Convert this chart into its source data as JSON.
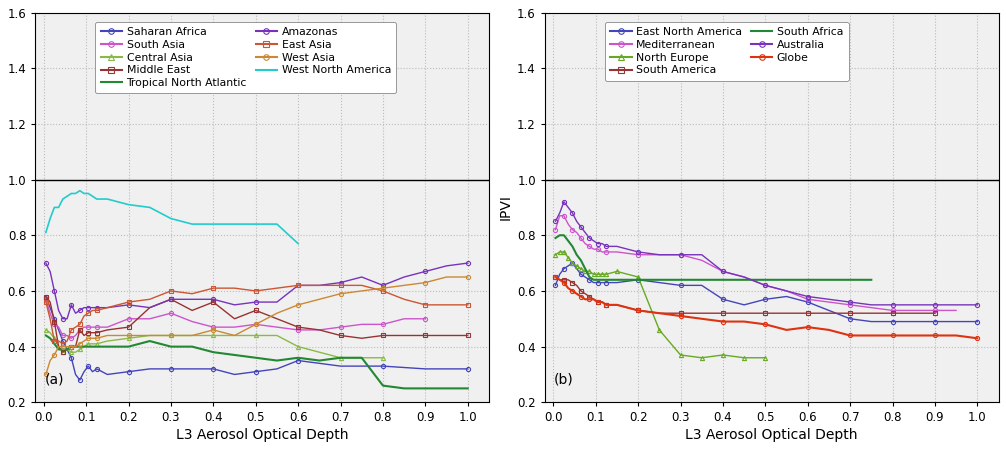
{
  "panel_a": {
    "xlabel": "L3 Aerosol Optical Depth",
    "ylabel": "",
    "label": "(a)",
    "ylim": [
      0.2,
      1.6
    ],
    "xlim": [
      -0.02,
      1.05
    ],
    "series": [
      {
        "name": "Saharan Africa",
        "color": "#4444bb",
        "marker": "o",
        "lw": 1.0,
        "x": [
          0.005,
          0.015,
          0.025,
          0.035,
          0.045,
          0.055,
          0.065,
          0.075,
          0.085,
          0.095,
          0.105,
          0.115,
          0.125,
          0.15,
          0.2,
          0.25,
          0.3,
          0.35,
          0.4,
          0.45,
          0.5,
          0.55,
          0.6,
          0.7,
          0.8,
          0.9,
          1.0
        ],
        "y": [
          0.58,
          0.54,
          0.5,
          0.46,
          0.42,
          0.39,
          0.36,
          0.3,
          0.28,
          0.31,
          0.33,
          0.31,
          0.32,
          0.3,
          0.31,
          0.32,
          0.32,
          0.32,
          0.32,
          0.3,
          0.31,
          0.32,
          0.35,
          0.33,
          0.33,
          0.32,
          0.32
        ]
      },
      {
        "name": "South Asia",
        "color": "#cc55cc",
        "marker": "o",
        "lw": 1.0,
        "x": [
          0.005,
          0.015,
          0.025,
          0.035,
          0.045,
          0.055,
          0.065,
          0.075,
          0.085,
          0.095,
          0.105,
          0.115,
          0.125,
          0.15,
          0.2,
          0.25,
          0.3,
          0.35,
          0.4,
          0.45,
          0.5,
          0.55,
          0.6,
          0.65,
          0.7,
          0.75,
          0.8,
          0.85,
          0.9
        ],
        "y": [
          0.57,
          0.52,
          0.48,
          0.47,
          0.44,
          0.44,
          0.43,
          0.44,
          0.46,
          0.47,
          0.47,
          0.47,
          0.47,
          0.47,
          0.5,
          0.5,
          0.52,
          0.49,
          0.47,
          0.47,
          0.48,
          0.47,
          0.46,
          0.46,
          0.47,
          0.48,
          0.48,
          0.5,
          0.5
        ]
      },
      {
        "name": "Central Asia",
        "color": "#88bb44",
        "marker": "^",
        "lw": 1.0,
        "x": [
          0.005,
          0.015,
          0.025,
          0.035,
          0.045,
          0.055,
          0.065,
          0.075,
          0.085,
          0.095,
          0.105,
          0.115,
          0.125,
          0.15,
          0.2,
          0.25,
          0.3,
          0.35,
          0.4,
          0.45,
          0.5,
          0.55,
          0.6,
          0.65,
          0.7,
          0.75,
          0.8
        ],
        "y": [
          0.46,
          0.45,
          0.43,
          0.4,
          0.38,
          0.39,
          0.38,
          0.38,
          0.39,
          0.4,
          0.41,
          0.41,
          0.41,
          0.42,
          0.43,
          0.44,
          0.44,
          0.44,
          0.44,
          0.44,
          0.44,
          0.44,
          0.4,
          0.38,
          0.36,
          0.36,
          0.36
        ]
      },
      {
        "name": "Middle East",
        "color": "#993333",
        "marker": "s",
        "lw": 1.0,
        "x": [
          0.005,
          0.015,
          0.025,
          0.035,
          0.045,
          0.055,
          0.065,
          0.075,
          0.085,
          0.095,
          0.105,
          0.115,
          0.125,
          0.15,
          0.2,
          0.25,
          0.3,
          0.35,
          0.4,
          0.45,
          0.5,
          0.55,
          0.6,
          0.65,
          0.7,
          0.75,
          0.8,
          0.85,
          0.9,
          0.95,
          1.0
        ],
        "y": [
          0.58,
          0.56,
          0.49,
          0.4,
          0.38,
          0.39,
          0.4,
          0.4,
          0.46,
          0.44,
          0.45,
          0.45,
          0.45,
          0.46,
          0.47,
          0.54,
          0.57,
          0.53,
          0.56,
          0.5,
          0.53,
          0.5,
          0.47,
          0.46,
          0.44,
          0.43,
          0.44,
          0.44,
          0.44,
          0.44,
          0.44
        ]
      },
      {
        "name": "Tropical North Atlantic",
        "color": "#228833",
        "marker": null,
        "lw": 1.5,
        "x": [
          0.005,
          0.015,
          0.025,
          0.035,
          0.045,
          0.055,
          0.065,
          0.075,
          0.085,
          0.095,
          0.105,
          0.115,
          0.125,
          0.15,
          0.2,
          0.25,
          0.3,
          0.35,
          0.4,
          0.45,
          0.5,
          0.55,
          0.6,
          0.65,
          0.7,
          0.75,
          0.8,
          0.85,
          0.9,
          0.95,
          1.0
        ],
        "y": [
          0.44,
          0.43,
          0.41,
          0.39,
          0.39,
          0.39,
          0.4,
          0.4,
          0.4,
          0.4,
          0.4,
          0.4,
          0.4,
          0.4,
          0.4,
          0.42,
          0.4,
          0.4,
          0.38,
          0.37,
          0.36,
          0.35,
          0.36,
          0.35,
          0.36,
          0.36,
          0.26,
          0.25,
          0.25,
          0.25,
          0.25
        ]
      },
      {
        "name": "Amazonas",
        "color": "#7733bb",
        "marker": "o",
        "lw": 1.0,
        "x": [
          0.005,
          0.015,
          0.025,
          0.035,
          0.045,
          0.055,
          0.065,
          0.075,
          0.085,
          0.095,
          0.105,
          0.115,
          0.125,
          0.15,
          0.2,
          0.25,
          0.3,
          0.35,
          0.4,
          0.45,
          0.5,
          0.55,
          0.6,
          0.65,
          0.7,
          0.75,
          0.8,
          0.85,
          0.9,
          0.95,
          1.0
        ],
        "y": [
          0.7,
          0.67,
          0.6,
          0.53,
          0.5,
          0.5,
          0.55,
          0.52,
          0.53,
          0.54,
          0.54,
          0.54,
          0.54,
          0.54,
          0.55,
          0.54,
          0.57,
          0.57,
          0.57,
          0.55,
          0.56,
          0.56,
          0.62,
          0.62,
          0.63,
          0.65,
          0.62,
          0.65,
          0.67,
          0.69,
          0.7
        ]
      },
      {
        "name": "East Asia",
        "color": "#cc5533",
        "marker": "s",
        "lw": 1.0,
        "x": [
          0.005,
          0.015,
          0.025,
          0.035,
          0.045,
          0.055,
          0.065,
          0.075,
          0.085,
          0.095,
          0.105,
          0.115,
          0.125,
          0.15,
          0.2,
          0.25,
          0.3,
          0.35,
          0.4,
          0.45,
          0.5,
          0.55,
          0.6,
          0.65,
          0.7,
          0.75,
          0.8,
          0.85,
          0.9,
          0.95,
          1.0
        ],
        "y": [
          0.56,
          0.5,
          0.42,
          0.42,
          0.41,
          0.42,
          0.46,
          0.47,
          0.48,
          0.51,
          0.52,
          0.53,
          0.53,
          0.54,
          0.56,
          0.57,
          0.6,
          0.59,
          0.61,
          0.61,
          0.6,
          0.61,
          0.62,
          0.62,
          0.62,
          0.62,
          0.6,
          0.57,
          0.55,
          0.55,
          0.55
        ]
      },
      {
        "name": "West Asia",
        "color": "#cc8833",
        "marker": "o",
        "lw": 1.0,
        "x": [
          0.005,
          0.015,
          0.025,
          0.035,
          0.045,
          0.055,
          0.065,
          0.075,
          0.085,
          0.095,
          0.105,
          0.115,
          0.125,
          0.15,
          0.2,
          0.25,
          0.3,
          0.35,
          0.4,
          0.45,
          0.5,
          0.55,
          0.6,
          0.65,
          0.7,
          0.75,
          0.8,
          0.85,
          0.9,
          0.95,
          1.0
        ],
        "y": [
          0.3,
          0.35,
          0.37,
          0.4,
          0.4,
          0.4,
          0.4,
          0.4,
          0.41,
          0.42,
          0.43,
          0.43,
          0.43,
          0.44,
          0.44,
          0.44,
          0.44,
          0.44,
          0.46,
          0.44,
          0.48,
          0.52,
          0.55,
          0.57,
          0.59,
          0.6,
          0.61,
          0.62,
          0.63,
          0.65,
          0.65
        ]
      },
      {
        "name": "West North America",
        "color": "#22cccc",
        "marker": null,
        "lw": 1.2,
        "x": [
          0.005,
          0.015,
          0.025,
          0.035,
          0.045,
          0.055,
          0.065,
          0.075,
          0.085,
          0.095,
          0.105,
          0.115,
          0.125,
          0.15,
          0.2,
          0.25,
          0.3,
          0.35,
          0.4,
          0.45,
          0.5,
          0.55,
          0.6
        ],
        "y": [
          0.81,
          0.86,
          0.9,
          0.9,
          0.93,
          0.94,
          0.95,
          0.95,
          0.96,
          0.95,
          0.95,
          0.94,
          0.93,
          0.93,
          0.91,
          0.9,
          0.86,
          0.84,
          0.84,
          0.84,
          0.84,
          0.84,
          0.77
        ]
      }
    ]
  },
  "panel_b": {
    "xlabel": "L3 Aerosol Optical Depth",
    "ylabel": "IPVI",
    "label": "(b)",
    "ylim": [
      0.2,
      1.6
    ],
    "xlim": [
      -0.02,
      1.05
    ],
    "series": [
      {
        "name": "East North America",
        "color": "#4444bb",
        "marker": "o",
        "lw": 1.0,
        "x": [
          0.005,
          0.015,
          0.025,
          0.035,
          0.045,
          0.055,
          0.065,
          0.075,
          0.085,
          0.095,
          0.105,
          0.115,
          0.125,
          0.15,
          0.2,
          0.25,
          0.3,
          0.35,
          0.4,
          0.45,
          0.5,
          0.55,
          0.6,
          0.65,
          0.7,
          0.75,
          0.8,
          0.85,
          0.9,
          0.95,
          1.0
        ],
        "y": [
          0.62,
          0.66,
          0.68,
          0.69,
          0.7,
          0.68,
          0.66,
          0.65,
          0.64,
          0.63,
          0.63,
          0.63,
          0.63,
          0.63,
          0.64,
          0.63,
          0.62,
          0.62,
          0.57,
          0.55,
          0.57,
          0.58,
          0.56,
          0.53,
          0.5,
          0.49,
          0.49,
          0.49,
          0.49,
          0.49,
          0.49
        ]
      },
      {
        "name": "Mediterranean",
        "color": "#cc55cc",
        "marker": "o",
        "lw": 1.0,
        "x": [
          0.005,
          0.015,
          0.025,
          0.035,
          0.045,
          0.055,
          0.065,
          0.075,
          0.085,
          0.095,
          0.105,
          0.115,
          0.125,
          0.15,
          0.2,
          0.25,
          0.3,
          0.35,
          0.4,
          0.45,
          0.5,
          0.55,
          0.6,
          0.65,
          0.7,
          0.75,
          0.8,
          0.85,
          0.9,
          0.95
        ],
        "y": [
          0.82,
          0.87,
          0.87,
          0.84,
          0.82,
          0.81,
          0.79,
          0.77,
          0.76,
          0.75,
          0.75,
          0.74,
          0.74,
          0.74,
          0.73,
          0.73,
          0.73,
          0.71,
          0.67,
          0.65,
          0.62,
          0.6,
          0.57,
          0.56,
          0.55,
          0.54,
          0.53,
          0.53,
          0.53,
          0.53
        ]
      },
      {
        "name": "North Europe",
        "color": "#66aa22",
        "marker": "^",
        "lw": 1.0,
        "x": [
          0.005,
          0.015,
          0.025,
          0.035,
          0.045,
          0.055,
          0.065,
          0.075,
          0.085,
          0.095,
          0.105,
          0.115,
          0.125,
          0.15,
          0.2,
          0.25,
          0.3,
          0.35,
          0.4,
          0.45,
          0.5
        ],
        "y": [
          0.73,
          0.74,
          0.74,
          0.72,
          0.7,
          0.69,
          0.68,
          0.67,
          0.67,
          0.66,
          0.66,
          0.66,
          0.66,
          0.67,
          0.65,
          0.46,
          0.37,
          0.36,
          0.37,
          0.36,
          0.36
        ]
      },
      {
        "name": "South America",
        "color": "#993333",
        "marker": "s",
        "lw": 1.0,
        "x": [
          0.005,
          0.015,
          0.025,
          0.035,
          0.045,
          0.055,
          0.065,
          0.075,
          0.085,
          0.095,
          0.105,
          0.115,
          0.125,
          0.15,
          0.2,
          0.25,
          0.3,
          0.35,
          0.4,
          0.45,
          0.5,
          0.55,
          0.6,
          0.65,
          0.7,
          0.75,
          0.8,
          0.85,
          0.9
        ],
        "y": [
          0.65,
          0.64,
          0.64,
          0.64,
          0.63,
          0.62,
          0.6,
          0.59,
          0.58,
          0.57,
          0.56,
          0.56,
          0.55,
          0.55,
          0.53,
          0.52,
          0.52,
          0.52,
          0.52,
          0.52,
          0.52,
          0.52,
          0.52,
          0.52,
          0.52,
          0.52,
          0.52,
          0.52,
          0.52
        ]
      },
      {
        "name": "South Africa",
        "color": "#228833",
        "marker": null,
        "lw": 1.5,
        "x": [
          0.005,
          0.015,
          0.025,
          0.035,
          0.045,
          0.055,
          0.065,
          0.075,
          0.085,
          0.095,
          0.105,
          0.115,
          0.125,
          0.15,
          0.2,
          0.25,
          0.3,
          0.35,
          0.4,
          0.45,
          0.5,
          0.55,
          0.6,
          0.65,
          0.7,
          0.75
        ],
        "y": [
          0.79,
          0.8,
          0.8,
          0.78,
          0.76,
          0.73,
          0.71,
          0.68,
          0.65,
          0.64,
          0.64,
          0.64,
          0.64,
          0.64,
          0.64,
          0.64,
          0.64,
          0.64,
          0.64,
          0.64,
          0.64,
          0.64,
          0.64,
          0.64,
          0.64,
          0.64
        ]
      },
      {
        "name": "Australia",
        "color": "#7733bb",
        "marker": "o",
        "lw": 1.0,
        "x": [
          0.005,
          0.015,
          0.025,
          0.035,
          0.045,
          0.055,
          0.065,
          0.075,
          0.085,
          0.095,
          0.105,
          0.115,
          0.125,
          0.15,
          0.2,
          0.25,
          0.3,
          0.35,
          0.4,
          0.45,
          0.5,
          0.55,
          0.6,
          0.65,
          0.7,
          0.75,
          0.8,
          0.85,
          0.9,
          0.95,
          1.0
        ],
        "y": [
          0.85,
          0.88,
          0.92,
          0.9,
          0.88,
          0.85,
          0.83,
          0.81,
          0.79,
          0.78,
          0.77,
          0.77,
          0.76,
          0.76,
          0.74,
          0.73,
          0.73,
          0.73,
          0.67,
          0.65,
          0.62,
          0.6,
          0.58,
          0.57,
          0.56,
          0.55,
          0.55,
          0.55,
          0.55,
          0.55,
          0.55
        ]
      },
      {
        "name": "Globe",
        "color": "#dd3311",
        "marker": "o",
        "lw": 1.5,
        "x": [
          0.005,
          0.015,
          0.025,
          0.035,
          0.045,
          0.055,
          0.065,
          0.075,
          0.085,
          0.095,
          0.105,
          0.115,
          0.125,
          0.15,
          0.2,
          0.25,
          0.3,
          0.35,
          0.4,
          0.45,
          0.5,
          0.55,
          0.6,
          0.65,
          0.7,
          0.75,
          0.8,
          0.85,
          0.9,
          0.95,
          1.0
        ],
        "y": [
          0.65,
          0.64,
          0.63,
          0.61,
          0.6,
          0.59,
          0.58,
          0.57,
          0.57,
          0.57,
          0.56,
          0.56,
          0.55,
          0.55,
          0.53,
          0.52,
          0.51,
          0.5,
          0.49,
          0.49,
          0.48,
          0.46,
          0.47,
          0.46,
          0.44,
          0.44,
          0.44,
          0.44,
          0.44,
          0.44,
          0.43
        ]
      }
    ]
  },
  "background_color": "#f0f0f0",
  "grid_color": "#bbbbbb",
  "yticks": [
    0.2,
    0.4,
    0.6,
    0.8,
    1.0,
    1.2,
    1.4,
    1.6
  ],
  "xticks": [
    0.0,
    0.1,
    0.2,
    0.3,
    0.4,
    0.5,
    0.6,
    0.7,
    0.8,
    0.9,
    1.0
  ]
}
